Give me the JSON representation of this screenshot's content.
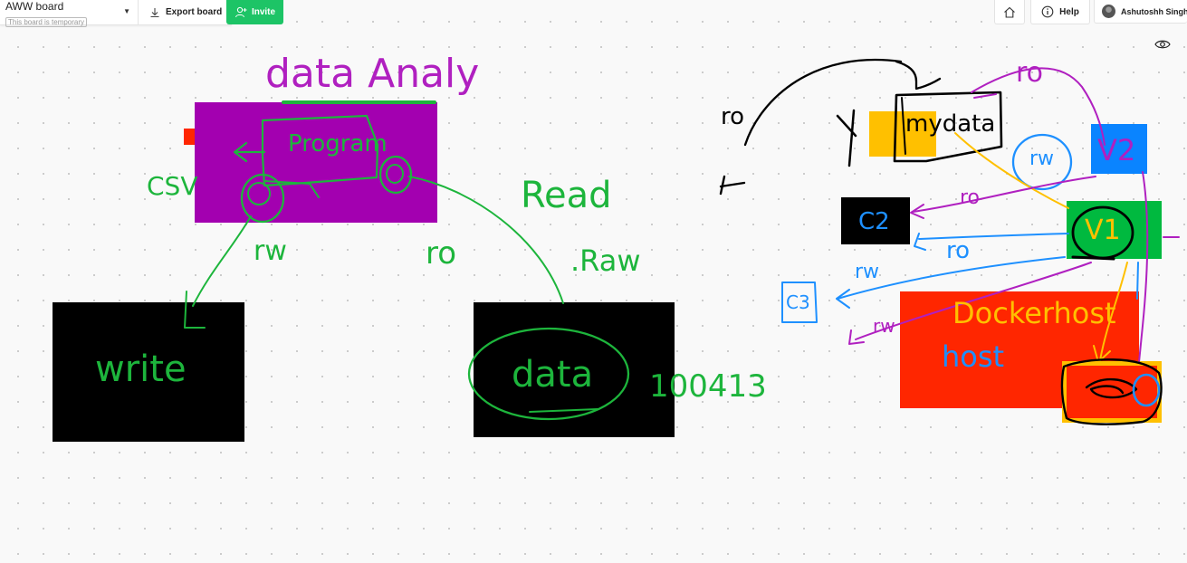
{
  "toolbar": {
    "board_title": "AWW board",
    "temporary_note": "This board is temporary",
    "export_label": "Export board",
    "invite_label": "Invite",
    "help_label": "Help",
    "user_name": "Ashutoshh Singh"
  },
  "icons": {
    "dropdown": "chevron-down-icon",
    "export": "download-icon",
    "invite": "add-user-icon",
    "home": "home-icon",
    "help": "info-icon",
    "view": "eye-icon"
  },
  "colors": {
    "invite": "#1dc466",
    "purple_box": "#a300b0",
    "red": "#ff2600",
    "black_box": "#000000",
    "yellow_box": "#ffc000",
    "blue_box": "#0a84ff",
    "green_box": "#00b93f",
    "ink_green": "#1db53c",
    "ink_purple": "#b020c0",
    "ink_blue": "#1e90ff",
    "ink_yellow": "#ffc000"
  },
  "canvas": {
    "left": {
      "title": "data Analy",
      "program": "Program",
      "csv": "CSV",
      "rw": "rw",
      "ro": "ro",
      "read": "Read",
      "raw": ".Raw",
      "write": "write",
      "data": "data",
      "num": "100413"
    },
    "right": {
      "ro_top": "ro",
      "ro_side": "ro",
      "mydata": "mydata",
      "rw_circle": "rw",
      "v2": "V2",
      "c2": "C2",
      "ro_c2": "ro",
      "v1": "V1",
      "ro_v1": "ro",
      "rw_c3": "rw",
      "c3": "C3",
      "rw_low": "rw",
      "docker": "Dockerhost",
      "host": "host"
    }
  }
}
